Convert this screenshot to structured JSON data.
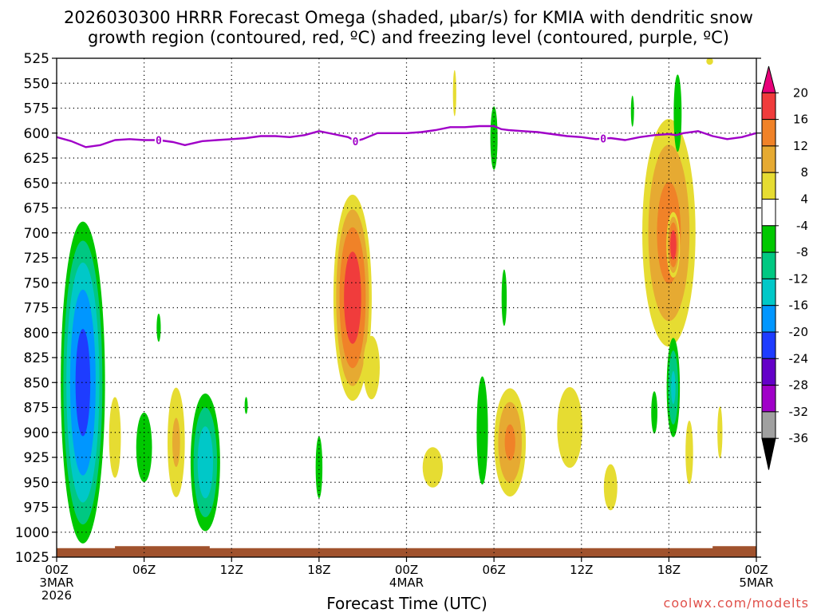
{
  "chart_data": {
    "type": "heatmap",
    "title_line1": "2026030300 HRRR Forecast Omega (shaded, μbar/s) for KMIA with dendritic snow",
    "title_line2": "growth region (contoured, red, ºC) and freezing level (contoured, purple, ºC)",
    "xlabel": "Forecast Time (UTC)",
    "credit": "coolwx.com/modelts",
    "x_range_hours": [
      0,
      48
    ],
    "y_range_mb": [
      525,
      1025
    ],
    "y_ticks": [
      "525",
      "550",
      "575",
      "600",
      "625",
      "650",
      "675",
      "700",
      "725",
      "750",
      "775",
      "800",
      "825",
      "850",
      "875",
      "900",
      "925",
      "950",
      "975",
      "1000",
      "1025"
    ],
    "x_ticks": [
      {
        "hour": 0,
        "label": "00Z",
        "sub1": "3MAR",
        "sub2": "2026"
      },
      {
        "hour": 6,
        "label": "06Z"
      },
      {
        "hour": 12,
        "label": "12Z"
      },
      {
        "hour": 18,
        "label": "18Z"
      },
      {
        "hour": 24,
        "label": "00Z",
        "sub1": "4MAR"
      },
      {
        "hour": 30,
        "label": "06Z"
      },
      {
        "hour": 36,
        "label": "12Z"
      },
      {
        "hour": 42,
        "label": "18Z"
      },
      {
        "hour": 48,
        "label": "00Z",
        "sub1": "5MAR"
      }
    ],
    "colorbar": {
      "labels": [
        "20",
        "16",
        "12",
        "8",
        "4",
        "-4",
        "-8",
        "-12",
        "-16",
        "-20",
        "-24",
        "-28",
        "-32",
        "-36"
      ],
      "colors": [
        "#e8007a",
        "#f03c3c",
        "#f08228",
        "#e6aa32",
        "#e6dc32",
        "#ffffff",
        "#00c800",
        "#00c882",
        "#00c8c8",
        "#0096ff",
        "#1e3cff",
        "#6400c8",
        "#a000c8",
        "#a0a0a0",
        "#000000"
      ]
    },
    "freezing_level": {
      "label": "0",
      "label_hours": [
        7,
        20.5,
        37.5
      ],
      "points": [
        [
          0,
          604
        ],
        [
          1,
          608
        ],
        [
          2,
          614
        ],
        [
          3,
          612
        ],
        [
          4,
          607
        ],
        [
          5,
          606
        ],
        [
          6,
          607
        ],
        [
          7,
          607
        ],
        [
          8,
          609
        ],
        [
          8.8,
          612
        ],
        [
          10,
          608
        ],
        [
          11,
          607
        ],
        [
          12,
          606
        ],
        [
          13,
          605
        ],
        [
          14,
          603
        ],
        [
          15,
          603
        ],
        [
          16,
          604
        ],
        [
          17,
          602
        ],
        [
          18,
          598
        ],
        [
          19,
          601
        ],
        [
          20,
          604
        ],
        [
          20.5,
          608
        ],
        [
          21,
          606
        ],
        [
          22,
          600
        ],
        [
          23,
          600
        ],
        [
          24,
          600
        ],
        [
          25,
          599
        ],
        [
          26,
          597
        ],
        [
          27,
          594
        ],
        [
          28,
          594
        ],
        [
          29,
          593
        ],
        [
          30,
          593
        ],
        [
          30.5,
          596
        ],
        [
          31,
          597
        ],
        [
          32,
          598
        ],
        [
          33,
          599
        ],
        [
          34,
          601
        ],
        [
          35,
          603
        ],
        [
          36,
          604
        ],
        [
          37,
          606
        ],
        [
          38,
          605
        ],
        [
          39,
          607
        ],
        [
          40,
          604
        ],
        [
          41,
          602
        ],
        [
          42,
          601
        ],
        [
          42.5,
          602
        ],
        [
          43,
          600
        ],
        [
          44,
          598
        ],
        [
          45,
          603
        ],
        [
          46,
          606
        ],
        [
          47,
          604
        ],
        [
          48,
          600
        ]
      ]
    },
    "omega_features": [
      {
        "hour": 1.8,
        "p": 850,
        "hw": 1.6,
        "hp": 170,
        "value": -22
      },
      {
        "hour": 4.0,
        "p": 905,
        "hw": 0.7,
        "hp": 70,
        "value": 5
      },
      {
        "hour": 6.0,
        "p": 915,
        "hw": 0.7,
        "hp": 45,
        "value": -7
      },
      {
        "hour": 7.0,
        "p": 795,
        "hw": 0.2,
        "hp": 20,
        "value": -6
      },
      {
        "hour": 8.2,
        "p": 910,
        "hw": 0.7,
        "hp": 65,
        "value": 9
      },
      {
        "hour": 10.2,
        "p": 930,
        "hw": 1.1,
        "hp": 75,
        "value": -15
      },
      {
        "hour": 13.0,
        "p": 873,
        "hw": 0.15,
        "hp": 12,
        "value": -6
      },
      {
        "hour": 18.0,
        "p": 935,
        "hw": 0.3,
        "hp": 40,
        "value": -7
      },
      {
        "hour": 20.3,
        "p": 765,
        "hw": 1.4,
        "hp": 110,
        "value": 19
      },
      {
        "hour": 21.6,
        "p": 835,
        "hw": 0.8,
        "hp": 45,
        "value": 6
      },
      {
        "hour": 25.8,
        "p": 935,
        "hw": 1.2,
        "hp": 35,
        "value": 5
      },
      {
        "hour": 29.2,
        "p": 898,
        "hw": 0.5,
        "hp": 70,
        "value": -7
      },
      {
        "hour": 30.0,
        "p": 605,
        "hw": 0.35,
        "hp": 45,
        "value": -6
      },
      {
        "hour": 30.7,
        "p": 765,
        "hw": 0.25,
        "hp": 40,
        "value": -6
      },
      {
        "hour": 31.1,
        "p": 910,
        "hw": 1.2,
        "hp": 60,
        "value": 13
      },
      {
        "hour": 35.2,
        "p": 895,
        "hw": 1.5,
        "hp": 70,
        "value": 5
      },
      {
        "hour": 38.0,
        "p": 955,
        "hw": 0.8,
        "hp": 40,
        "value": 5
      },
      {
        "hour": 39.5,
        "p": 578,
        "hw": 0.15,
        "hp": 22,
        "value": -6
      },
      {
        "hour": 41.0,
        "p": 880,
        "hw": 0.3,
        "hp": 30,
        "value": -6
      },
      {
        "hour": 42.0,
        "p": 700,
        "hw": 2.0,
        "hp": 125,
        "value": 14
      },
      {
        "hour": 42.3,
        "p": 712,
        "hw": 0.5,
        "hp": 35,
        "value": 19
      },
      {
        "hour": 42.3,
        "p": 855,
        "hw": 0.5,
        "hp": 55,
        "value": -13
      },
      {
        "hour": 42.6,
        "p": 580,
        "hw": 0.35,
        "hp": 50,
        "value": -7
      },
      {
        "hour": 43.4,
        "p": 920,
        "hw": 0.45,
        "hp": 55,
        "value": 5
      },
      {
        "hour": 45.5,
        "p": 900,
        "hw": 0.3,
        "hp": 45,
        "value": 5
      },
      {
        "hour": 44.8,
        "p": 528,
        "hw": 0.4,
        "hp": 6,
        "value": 5
      },
      {
        "hour": 27.3,
        "p": 560,
        "hw": 0.2,
        "hp": 40,
        "value": 5
      }
    ],
    "terrain": {
      "top_p": 1016,
      "bump_start_hour": 4.0,
      "bump_end_hour": 10.5,
      "bump_top_p": 1014,
      "bump2_start_hour": 45.0,
      "bump2_top_p": 1014
    }
  }
}
